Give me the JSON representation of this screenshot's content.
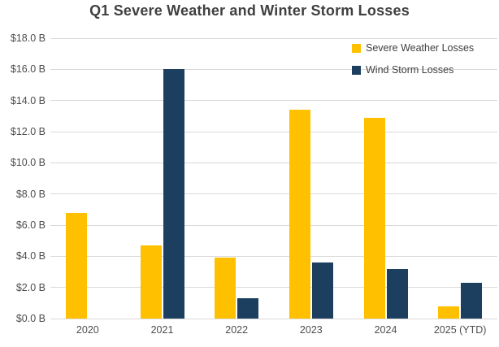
{
  "chart_data": {
    "type": "bar",
    "title": "Q1 Severe Weather and Winter Storm Losses",
    "categories": [
      "2020",
      "2021",
      "2022",
      "2023",
      "2024",
      "2025 (YTD)"
    ],
    "series": [
      {
        "name": "Severe Weather Losses",
        "color": "#FFC000",
        "values": [
          6.8,
          4.7,
          3.9,
          13.4,
          12.9,
          0.8
        ]
      },
      {
        "name": "Wind Storm Losses",
        "color": "#1C3F5F",
        "values": [
          null,
          16.0,
          1.3,
          3.6,
          3.2,
          2.3
        ]
      }
    ],
    "ylim": [
      0,
      18
    ],
    "ytick_step": 2,
    "ytick_labels": [
      "$0.0 B",
      "$2.0 B",
      "$4.0 B",
      "$6.0 B",
      "$8.0 B",
      "$10.0 B",
      "$12.0 B",
      "$14.0 B",
      "$16.0 B",
      "$18.0 B"
    ],
    "xlabel": "",
    "ylabel": "",
    "grid": "horizontal",
    "legend_position": "top-right",
    "colors": {
      "background": "#FFFFFF",
      "gridline": "#D9D9D9",
      "title_text": "#404040",
      "axis_text": "#4D4D4D"
    }
  }
}
